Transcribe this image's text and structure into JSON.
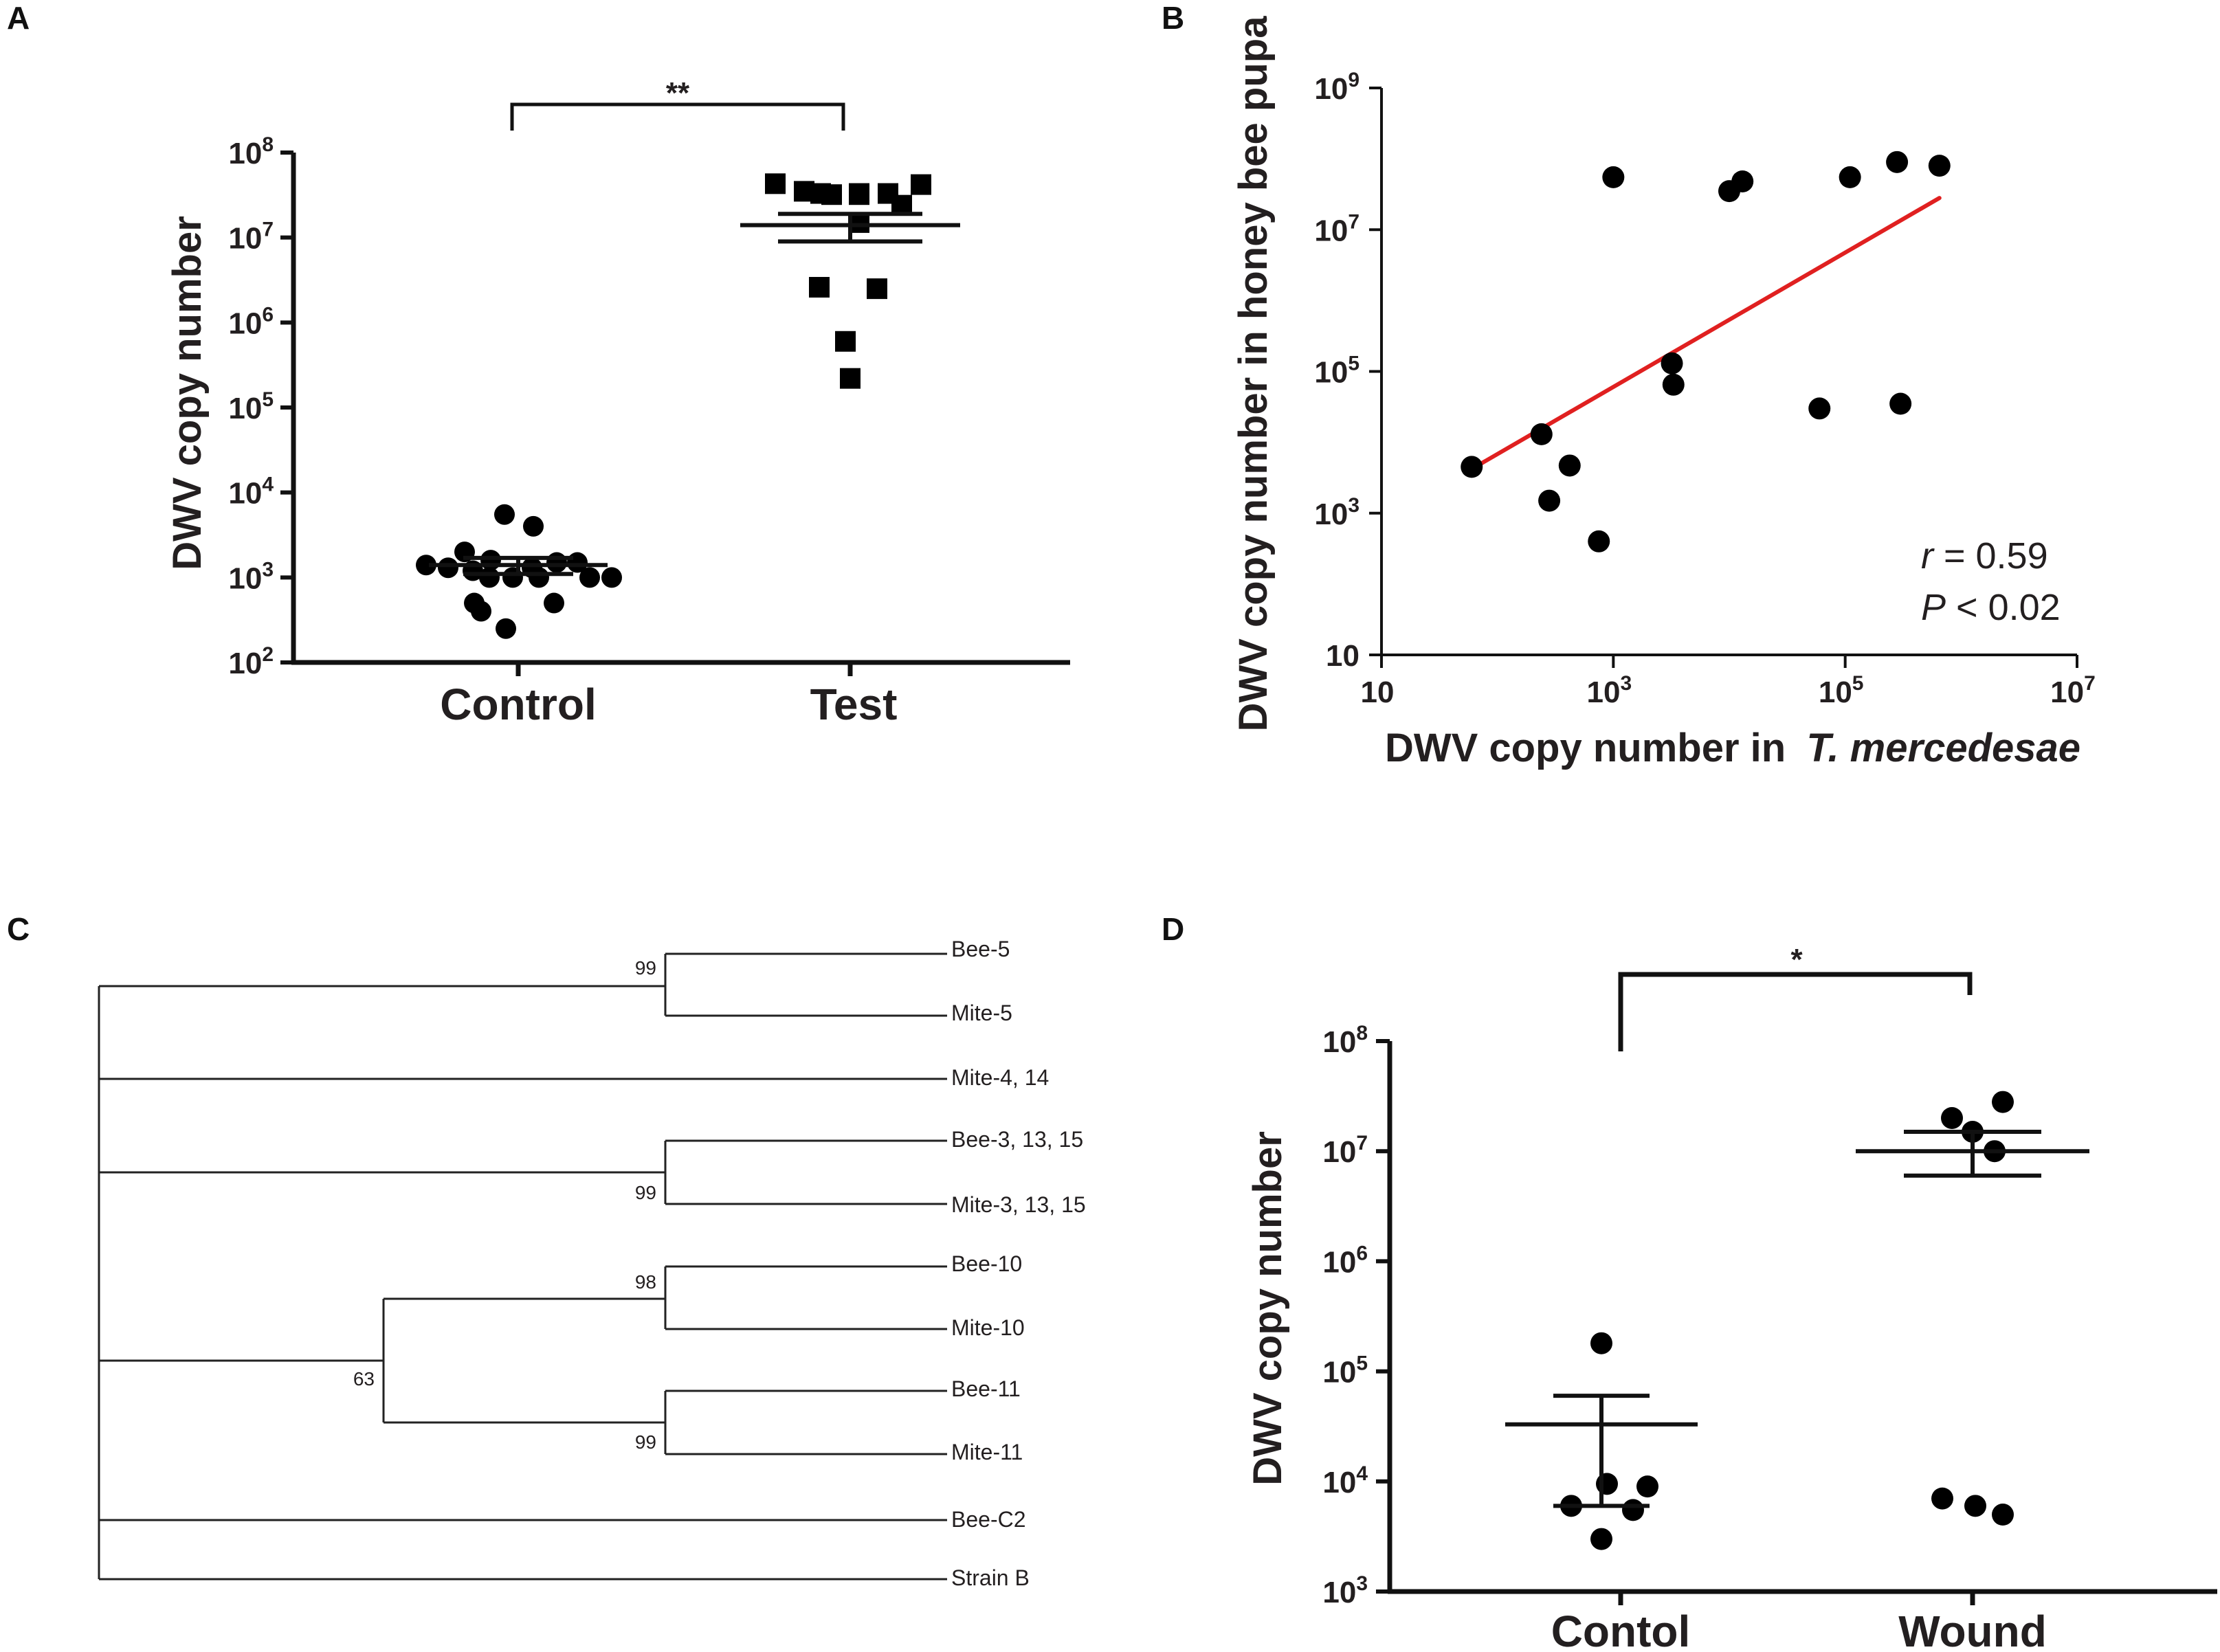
{
  "figure": {
    "panels": [
      "A",
      "B",
      "C",
      "D"
    ]
  },
  "colors": {
    "points": "#000000",
    "axes": "#111111",
    "regression": "#e02020",
    "tree": "#222222"
  },
  "chart_data": [
    {
      "panel": "A",
      "type": "scatter",
      "title": "",
      "xlabel": "",
      "ylabel": "DWV copy number",
      "yscale": "log",
      "ylim": [
        100,
        100000000
      ],
      "yticks": [
        100,
        1000,
        10000,
        100000,
        1000000,
        10000000,
        100000000
      ],
      "ytick_labels": [
        [
          "10",
          "2"
        ],
        [
          "10",
          "3"
        ],
        [
          "10",
          "4"
        ],
        [
          "10",
          "5"
        ],
        [
          "10",
          "6"
        ],
        [
          "10",
          "7"
        ],
        [
          "10",
          "8"
        ]
      ],
      "categories": [
        "Control",
        "Test"
      ],
      "series": [
        {
          "name": "Control",
          "marker": "circle",
          "values": [
            5500,
            4000,
            2000,
            1600,
            1500,
            1500,
            1400,
            1300,
            1200,
            1300,
            1000,
            1000,
            1000,
            1000,
            1000,
            500,
            500,
            400,
            250
          ],
          "mean": 1400,
          "sem": [
            1100,
            1700
          ]
        },
        {
          "name": "Test",
          "marker": "square",
          "values": [
            43000000,
            35000000,
            32000000,
            32000000,
            33000000,
            42000000,
            33000000,
            33000000,
            24000000,
            15000000,
            2600000,
            2500000,
            600000,
            220000
          ],
          "mean": 14000000,
          "sem": [
            9000000,
            19000000
          ]
        }
      ],
      "significance": "**"
    },
    {
      "panel": "B",
      "type": "scatter",
      "title": "",
      "xlabel": "DWV copy number in",
      "xlabel_italic": "T. mercedesae",
      "ylabel": "DWV copy number in honey bee pupa",
      "xscale": "log",
      "yscale": "log",
      "xlim": [
        10,
        10000000
      ],
      "ylim": [
        10,
        1000000000
      ],
      "xtick_labels": [
        [
          "10",
          ""
        ],
        [
          "10",
          "3"
        ],
        [
          "10",
          "5"
        ],
        [
          "10",
          "7"
        ]
      ],
      "ytick_labels": [
        [
          "10",
          ""
        ],
        [
          "10",
          "3"
        ],
        [
          "10",
          "5"
        ],
        [
          "10",
          "7"
        ],
        [
          "10",
          "9"
        ]
      ],
      "x": [
        60,
        240,
        280,
        420,
        750,
        1000,
        3200,
        3300,
        10000,
        13000,
        60000,
        110000,
        280000,
        300000,
        650000
      ],
      "y": [
        4500,
        13000,
        1500,
        4700,
        400,
        55000000,
        130000,
        65000,
        35000000,
        48000000,
        30000,
        55000000,
        90000000,
        35000,
        80000000
      ],
      "regression": {
        "x": [
          60,
          650000
        ],
        "y": [
          4200,
          28000000
        ]
      },
      "stats": {
        "r_symbol": "r",
        "r_text": " = 0.59",
        "p_symbol": "P",
        "p_text": " < 0.02"
      }
    },
    {
      "panel": "D",
      "type": "scatter",
      "title": "",
      "xlabel": "",
      "ylabel": "DWV copy number",
      "yscale": "log",
      "ylim": [
        1000,
        100000000
      ],
      "ytick_labels": [
        [
          "10",
          "3"
        ],
        [
          "10",
          "4"
        ],
        [
          "10",
          "5"
        ],
        [
          "10",
          "6"
        ],
        [
          "10",
          "7"
        ],
        [
          "10",
          "8"
        ]
      ],
      "categories": [
        "Contol",
        "Wound"
      ],
      "series": [
        {
          "name": "Contol",
          "marker": "circle",
          "values": [
            180000,
            9500,
            9000,
            6000,
            5500,
            3000
          ],
          "mean": 33000,
          "sem": [
            6000,
            60000
          ]
        },
        {
          "name": "Wound",
          "marker": "circle",
          "values": [
            28000000,
            20000000,
            15000000,
            10000000,
            7000,
            6000,
            5000
          ],
          "mean": 10000000,
          "sem": [
            6000000,
            15000000
          ]
        }
      ],
      "significance": "*"
    }
  ],
  "tree": {
    "panel": "C",
    "leaves": [
      "Bee-5",
      "Mite-5",
      "Mite-4, 14",
      "Bee-3, 13, 15",
      "Mite-3, 13, 15",
      "Bee-10",
      "Mite-10",
      "Bee-11",
      "Mite-11",
      "Bee-C2",
      "Strain B"
    ],
    "bootstrap": [
      "99",
      "99",
      "98",
      "99",
      "63"
    ]
  }
}
